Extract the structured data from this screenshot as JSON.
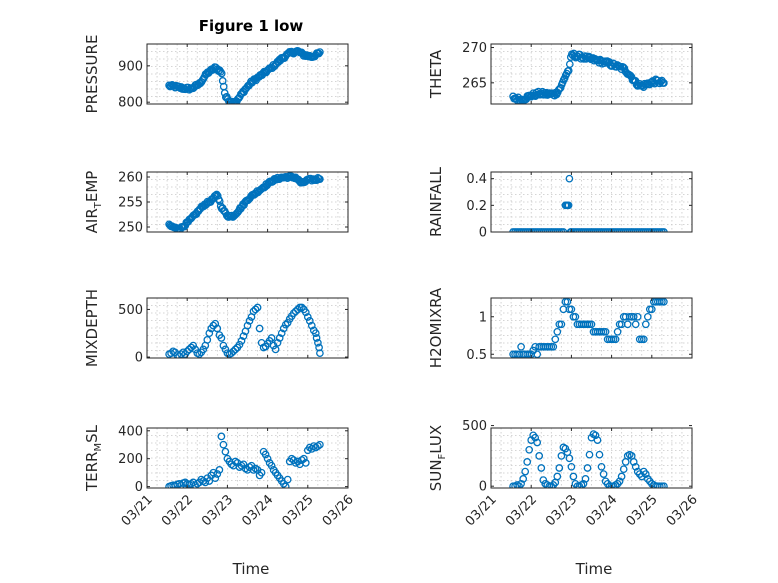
{
  "figure": {
    "title": "Figure 1 low",
    "xlabel": "Time"
  },
  "colors": {
    "marker": "#0072BD"
  },
  "chart_data": [
    {
      "type": "scatter",
      "ylabel_main": "PRESSURE",
      "ylabel_sub": "",
      "ylabel_tail": "",
      "ylim": [
        795,
        960
      ],
      "yticks": [
        800,
        900
      ],
      "ytick_labels": [
        "800",
        "900"
      ],
      "xlim": [
        0,
        5
      ],
      "xticks": [
        0,
        1,
        2,
        3,
        4,
        5
      ],
      "xtick_labels": [
        "03/21",
        "03/22",
        "03/23",
        "03/24",
        "03/25",
        "03/26"
      ],
      "show_xticklabels": false,
      "grid": true,
      "knots": [
        [
          0.55,
          845
        ],
        [
          0.75,
          842
        ],
        [
          0.9,
          838
        ],
        [
          1.1,
          837
        ],
        [
          1.3,
          850
        ],
        [
          1.5,
          880
        ],
        [
          1.7,
          895
        ],
        [
          1.85,
          883
        ],
        [
          1.9,
          850
        ],
        [
          1.95,
          815
        ],
        [
          2.1,
          800
        ],
        [
          2.25,
          805
        ],
        [
          2.4,
          830
        ],
        [
          2.6,
          855
        ],
        [
          2.85,
          875
        ],
        [
          3.1,
          895
        ],
        [
          3.35,
          920
        ],
        [
          3.55,
          935
        ],
        [
          3.75,
          940
        ],
        [
          3.9,
          930
        ],
        [
          4.1,
          925
        ],
        [
          4.3,
          935
        ]
      ],
      "n": 150,
      "noise": 4,
      "x": [],
      "y": []
    },
    {
      "type": "scatter",
      "ylabel_main": "THETA",
      "ylabel_sub": "",
      "ylabel_tail": "",
      "ylim": [
        262,
        270.5
      ],
      "yticks": [
        265,
        270
      ],
      "ytick_labels": [
        "265",
        "270"
      ],
      "xlim": [
        0,
        5
      ],
      "xticks": [
        0,
        1,
        2,
        3,
        4,
        5
      ],
      "xtick_labels": [
        "03/21",
        "03/22",
        "03/23",
        "03/24",
        "03/25",
        "03/26"
      ],
      "show_xticklabels": false,
      "grid": true,
      "knots": [
        [
          0.55,
          262.9
        ],
        [
          0.75,
          262.6
        ],
        [
          1.0,
          263.2
        ],
        [
          1.2,
          263.5
        ],
        [
          1.4,
          263.4
        ],
        [
          1.6,
          263.4
        ],
        [
          1.75,
          264.5
        ],
        [
          1.85,
          266
        ],
        [
          1.95,
          267
        ],
        [
          2.0,
          269
        ],
        [
          2.3,
          268.6
        ],
        [
          2.6,
          268.2
        ],
        [
          2.9,
          267.8
        ],
        [
          3.1,
          267.4
        ],
        [
          3.3,
          267.0
        ],
        [
          3.45,
          266.2
        ],
        [
          3.6,
          265
        ],
        [
          3.75,
          264.5
        ],
        [
          3.95,
          265
        ],
        [
          4.1,
          265.2
        ],
        [
          4.3,
          265
        ]
      ],
      "n": 150,
      "noise": 0.3,
      "x": [],
      "y": []
    },
    {
      "type": "scatter",
      "ylabel_main": "AIR",
      "ylabel_sub": "T",
      "ylabel_tail": "EMP",
      "ylim": [
        249,
        261
      ],
      "yticks": [
        250,
        255,
        260
      ],
      "ytick_labels": [
        "250",
        "255",
        "260"
      ],
      "xlim": [
        0,
        5
      ],
      "xticks": [
        0,
        1,
        2,
        3,
        4,
        5
      ],
      "xtick_labels": [
        "03/21",
        "03/22",
        "03/23",
        "03/24",
        "03/25",
        "03/26"
      ],
      "show_xticklabels": false,
      "grid": true,
      "knots": [
        [
          0.55,
          250.3
        ],
        [
          0.8,
          249.5
        ],
        [
          1.0,
          250.8
        ],
        [
          1.2,
          252.5
        ],
        [
          1.4,
          254.3
        ],
        [
          1.6,
          255.3
        ],
        [
          1.75,
          256.5
        ],
        [
          1.85,
          254
        ],
        [
          2.0,
          252.2
        ],
        [
          2.15,
          252.2
        ],
        [
          2.3,
          253.5
        ],
        [
          2.5,
          255.5
        ],
        [
          2.7,
          256.8
        ],
        [
          2.9,
          258
        ],
        [
          3.1,
          259.2
        ],
        [
          3.3,
          259.8
        ],
        [
          3.5,
          260
        ],
        [
          3.7,
          259.9
        ],
        [
          3.85,
          258.7
        ],
        [
          4.0,
          259.4
        ],
        [
          4.2,
          259.5
        ],
        [
          4.3,
          259.8
        ]
      ],
      "n": 150,
      "noise": 0.25,
      "x": [],
      "y": []
    },
    {
      "type": "scatter",
      "ylabel_main": "RAINFALL",
      "ylabel_sub": "",
      "ylabel_tail": "",
      "ylim": [
        0,
        0.45
      ],
      "yticks": [
        0,
        0.2,
        0.4
      ],
      "ytick_labels": [
        "0",
        "0.2",
        "0.4"
      ],
      "xlim": [
        0,
        5
      ],
      "xticks": [
        0,
        1,
        2,
        3,
        4,
        5
      ],
      "xtick_labels": [
        "03/21",
        "03/22",
        "03/23",
        "03/24",
        "03/25",
        "03/26"
      ],
      "show_xticklabels": false,
      "grid": true,
      "knots": [],
      "n": 0,
      "noise": 0,
      "x": [
        0.55,
        0.6,
        0.65,
        0.7,
        0.75,
        0.8,
        0.85,
        0.9,
        0.95,
        1.0,
        1.05,
        1.1,
        1.15,
        1.2,
        1.25,
        1.3,
        1.35,
        1.4,
        1.45,
        1.5,
        1.55,
        1.6,
        1.65,
        1.7,
        1.75,
        1.8,
        1.85,
        1.87,
        1.9,
        1.93,
        1.95,
        1.98,
        2.0,
        2.05,
        2.1,
        2.15,
        2.2,
        2.25,
        2.3,
        2.35,
        2.4,
        2.45,
        2.5,
        2.55,
        2.6,
        2.65,
        2.7,
        2.75,
        2.8,
        2.85,
        2.9,
        2.95,
        3.0,
        3.05,
        3.1,
        3.15,
        3.2,
        3.25,
        3.3,
        3.35,
        3.4,
        3.45,
        3.5,
        3.55,
        3.6,
        3.65,
        3.7,
        3.75,
        3.8,
        3.85,
        3.9,
        3.95,
        4.0,
        4.05,
        4.1,
        4.15,
        4.2,
        4.25,
        4.3
      ],
      "y": [
        0,
        0,
        0,
        0,
        0,
        0,
        0,
        0,
        0,
        0,
        0,
        0,
        0,
        0,
        0,
        0,
        0,
        0,
        0,
        0,
        0,
        0,
        0,
        0,
        0,
        0,
        0.2,
        0.2,
        0.2,
        0.2,
        0.4,
        0,
        0,
        0,
        0,
        0,
        0,
        0,
        0,
        0,
        0,
        0,
        0,
        0,
        0,
        0,
        0,
        0,
        0,
        0,
        0,
        0,
        0,
        0,
        0,
        0,
        0,
        0,
        0,
        0,
        0,
        0,
        0,
        0,
        0,
        0,
        0,
        0,
        0,
        0,
        0,
        0,
        0,
        0,
        0,
        0,
        0,
        0,
        0
      ]
    },
    {
      "type": "scatter",
      "ylabel_main": "MIXDEPTH",
      "ylabel_sub": "",
      "ylabel_tail": "",
      "ylim": [
        -10,
        620
      ],
      "yticks": [
        0,
        500
      ],
      "ytick_labels": [
        "0",
        "500"
      ],
      "xlim": [
        0,
        5
      ],
      "xticks": [
        0,
        1,
        2,
        3,
        4,
        5
      ],
      "xtick_labels": [
        "03/21",
        "03/22",
        "03/23",
        "03/24",
        "03/25",
        "03/26"
      ],
      "show_xticklabels": false,
      "grid": true,
      "knots": [],
      "n": 0,
      "noise": 0,
      "x": [
        0.55,
        0.6,
        0.65,
        0.7,
        0.75,
        0.8,
        0.85,
        0.9,
        0.95,
        1.0,
        1.05,
        1.1,
        1.15,
        1.2,
        1.25,
        1.3,
        1.35,
        1.4,
        1.45,
        1.5,
        1.55,
        1.6,
        1.65,
        1.7,
        1.75,
        1.8,
        1.85,
        1.9,
        1.95,
        2.0,
        2.05,
        2.1,
        2.15,
        2.2,
        2.25,
        2.3,
        2.35,
        2.4,
        2.45,
        2.5,
        2.55,
        2.6,
        2.65,
        2.7,
        2.75,
        2.8,
        2.85,
        2.9,
        2.95,
        3.0,
        3.05,
        3.1,
        3.15,
        3.2,
        3.25,
        3.3,
        3.35,
        3.4,
        3.45,
        3.5,
        3.55,
        3.6,
        3.65,
        3.7,
        3.75,
        3.8,
        3.85,
        3.9,
        3.95,
        4.0,
        4.05,
        4.1,
        4.15,
        4.2,
        4.22,
        4.25,
        4.28,
        4.3
      ],
      "y": [
        30,
        40,
        60,
        50,
        20,
        10,
        30,
        50,
        30,
        60,
        80,
        100,
        120,
        80,
        40,
        30,
        50,
        80,
        120,
        180,
        250,
        300,
        330,
        350,
        300,
        230,
        200,
        120,
        80,
        40,
        30,
        40,
        60,
        80,
        100,
        130,
        170,
        220,
        270,
        330,
        380,
        420,
        480,
        500,
        520,
        300,
        150,
        100,
        110,
        140,
        170,
        200,
        120,
        80,
        150,
        200,
        250,
        300,
        340,
        360,
        400,
        430,
        460,
        480,
        500,
        520,
        520,
        500,
        470,
        420,
        380,
        330,
        280,
        250,
        200,
        150,
        100,
        40
      ]
    },
    {
      "type": "scatter",
      "ylabel_main": "H2OMIXRA",
      "ylabel_sub": "",
      "ylabel_tail": "",
      "ylim": [
        0.45,
        1.25
      ],
      "yticks": [
        0.5,
        1
      ],
      "ytick_labels": [
        "0.5",
        "1"
      ],
      "xlim": [
        0,
        5
      ],
      "xticks": [
        0,
        1,
        2,
        3,
        4,
        5
      ],
      "xtick_labels": [
        "03/21",
        "03/22",
        "03/23",
        "03/24",
        "03/25",
        "03/26"
      ],
      "show_xticklabels": false,
      "grid": true,
      "knots": [],
      "n": 0,
      "noise": 0,
      "x": [
        0.55,
        0.6,
        0.65,
        0.7,
        0.75,
        0.8,
        0.85,
        0.9,
        0.95,
        1.0,
        1.05,
        1.1,
        1.15,
        1.2,
        1.25,
        1.3,
        1.35,
        1.4,
        1.45,
        1.5,
        1.55,
        1.6,
        1.65,
        1.7,
        1.75,
        1.8,
        1.85,
        1.9,
        1.95,
        2.0,
        2.05,
        2.1,
        2.15,
        2.2,
        2.25,
        2.3,
        2.35,
        2.4,
        2.45,
        2.5,
        2.55,
        2.6,
        2.65,
        2.7,
        2.75,
        2.8,
        2.85,
        2.9,
        2.95,
        3.0,
        3.05,
        3.1,
        3.15,
        3.2,
        3.25,
        3.3,
        3.35,
        3.4,
        3.45,
        3.5,
        3.55,
        3.6,
        3.65,
        3.7,
        3.75,
        3.8,
        3.85,
        3.9,
        3.95,
        4.0,
        4.05,
        4.1,
        4.15,
        4.2,
        4.25,
        4.3
      ],
      "y": [
        0.5,
        0.5,
        0.5,
        0.5,
        0.6,
        0.5,
        0.5,
        0.5,
        0.5,
        0.5,
        0.55,
        0.6,
        0.5,
        0.6,
        0.6,
        0.6,
        0.6,
        0.6,
        0.6,
        0.6,
        0.6,
        0.7,
        0.8,
        0.9,
        0.9,
        1.1,
        1.2,
        1.2,
        1.1,
        1.1,
        1.0,
        1.0,
        0.9,
        0.9,
        0.9,
        0.9,
        0.9,
        0.9,
        0.9,
        0.9,
        0.8,
        0.8,
        0.8,
        0.8,
        0.8,
        0.8,
        0.8,
        0.7,
        0.7,
        0.7,
        0.7,
        0.7,
        0.8,
        0.9,
        0.9,
        1.0,
        1.0,
        0.9,
        1.0,
        1.0,
        1.0,
        0.9,
        1.0,
        0.7,
        0.7,
        0.7,
        0.9,
        1.0,
        1.1,
        1.1,
        1.2,
        1.2,
        1.2,
        1.2,
        1.2,
        1.2
      ]
    },
    {
      "type": "scatter",
      "ylabel_main": "TERR",
      "ylabel_sub": "M",
      "ylabel_tail": "SL",
      "ylim": [
        -10,
        420
      ],
      "yticks": [
        0,
        200,
        400
      ],
      "ytick_labels": [
        "0",
        "200",
        "400"
      ],
      "xlim": [
        0,
        5
      ],
      "xticks": [
        0,
        1,
        2,
        3,
        4,
        5
      ],
      "xtick_labels": [
        "03/21",
        "03/22",
        "03/23",
        "03/24",
        "03/25",
        "03/26"
      ],
      "show_xticklabels": true,
      "grid": true,
      "knots": [],
      "n": 0,
      "noise": 0,
      "x": [
        0.55,
        0.6,
        0.65,
        0.7,
        0.75,
        0.8,
        0.85,
        0.9,
        0.95,
        1.0,
        1.05,
        1.1,
        1.15,
        1.2,
        1.25,
        1.3,
        1.35,
        1.4,
        1.45,
        1.5,
        1.55,
        1.6,
        1.65,
        1.7,
        1.75,
        1.8,
        1.85,
        1.9,
        1.95,
        2.0,
        2.05,
        2.1,
        2.15,
        2.2,
        2.25,
        2.3,
        2.35,
        2.4,
        2.45,
        2.5,
        2.55,
        2.6,
        2.65,
        2.7,
        2.75,
        2.8,
        2.85,
        2.9,
        2.95,
        3.0,
        3.05,
        3.1,
        3.15,
        3.2,
        3.25,
        3.3,
        3.35,
        3.4,
        3.45,
        3.5,
        3.55,
        3.6,
        3.65,
        3.7,
        3.75,
        3.8,
        3.85,
        3.9,
        3.95,
        4.0,
        4.05,
        4.1,
        4.15,
        4.2,
        4.25,
        4.3
      ],
      "y": [
        0,
        5,
        10,
        5,
        15,
        20,
        10,
        25,
        30,
        20,
        15,
        20,
        30,
        10,
        20,
        30,
        50,
        40,
        30,
        60,
        40,
        80,
        100,
        60,
        90,
        120,
        360,
        300,
        250,
        200,
        180,
        160,
        150,
        180,
        170,
        140,
        150,
        160,
        130,
        120,
        140,
        150,
        120,
        130,
        120,
        80,
        100,
        250,
        230,
        200,
        170,
        150,
        120,
        100,
        80,
        60,
        40,
        20,
        0,
        50,
        180,
        200,
        190,
        170,
        180,
        160,
        190,
        200,
        170,
        260,
        280,
        270,
        290,
        280,
        290,
        300
      ]
    },
    {
      "type": "scatter",
      "ylabel_main": "SUN",
      "ylabel_sub": "F",
      "ylabel_tail": "LUX",
      "ylim": [
        -15,
        480
      ],
      "yticks": [
        0,
        500
      ],
      "ytick_labels": [
        "0",
        "500"
      ],
      "xlim": [
        0,
        5
      ],
      "xticks": [
        0,
        1,
        2,
        3,
        4,
        5
      ],
      "xtick_labels": [
        "03/21",
        "03/22",
        "03/23",
        "03/24",
        "03/25",
        "03/26"
      ],
      "show_xticklabels": true,
      "grid": true,
      "knots": [],
      "n": 0,
      "noise": 0,
      "x": [
        0.55,
        0.6,
        0.65,
        0.7,
        0.75,
        0.8,
        0.85,
        0.9,
        0.95,
        1.0,
        1.05,
        1.1,
        1.15,
        1.2,
        1.25,
        1.3,
        1.35,
        1.4,
        1.45,
        1.5,
        1.55,
        1.6,
        1.65,
        1.7,
        1.75,
        1.8,
        1.85,
        1.9,
        1.95,
        2.0,
        2.05,
        2.1,
        2.15,
        2.2,
        2.25,
        2.3,
        2.35,
        2.4,
        2.45,
        2.5,
        2.55,
        2.6,
        2.65,
        2.7,
        2.75,
        2.8,
        2.85,
        2.9,
        2.95,
        3.0,
        3.05,
        3.1,
        3.15,
        3.2,
        3.25,
        3.3,
        3.35,
        3.4,
        3.45,
        3.5,
        3.55,
        3.6,
        3.65,
        3.7,
        3.75,
        3.8,
        3.85,
        3.9,
        3.95,
        4.0,
        4.05,
        4.1,
        4.15,
        4.2,
        4.25,
        4.3
      ],
      "y": [
        0,
        0,
        10,
        0,
        20,
        60,
        120,
        200,
        300,
        380,
        420,
        400,
        360,
        250,
        150,
        50,
        20,
        10,
        0,
        0,
        10,
        30,
        80,
        150,
        250,
        320,
        310,
        280,
        230,
        160,
        80,
        20,
        0,
        0,
        10,
        20,
        60,
        150,
        260,
        400,
        430,
        420,
        380,
        260,
        160,
        100,
        40,
        20,
        0,
        0,
        0,
        10,
        20,
        40,
        80,
        140,
        200,
        250,
        260,
        250,
        200,
        160,
        120,
        100,
        80,
        120,
        100,
        60,
        40,
        20,
        10,
        0,
        0,
        0,
        0,
        0
      ]
    }
  ]
}
